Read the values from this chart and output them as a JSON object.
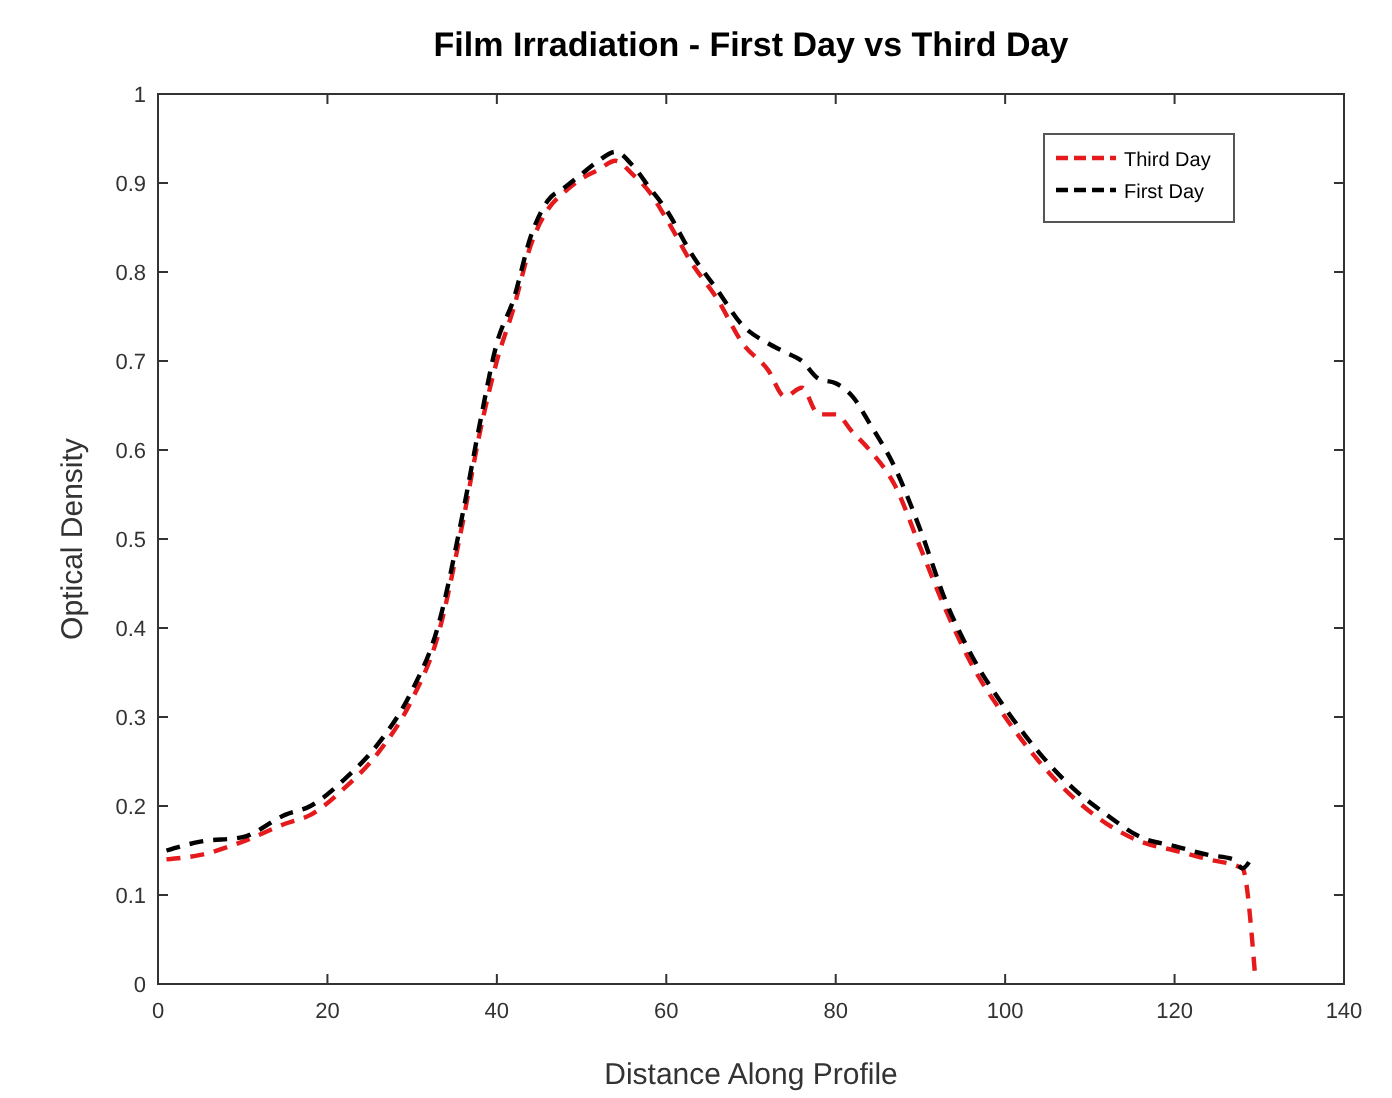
{
  "chart_data": {
    "type": "line",
    "title": "Film Irradiation - First Day vs Third Day",
    "xlabel": "Distance Along Profile",
    "ylabel": "Optical Density",
    "xlim": [
      0,
      140
    ],
    "xticks": [
      0,
      20,
      40,
      60,
      80,
      100,
      120,
      140
    ],
    "ylim": [
      0,
      1
    ],
    "yticks": [
      0,
      0.1,
      0.2,
      0.3,
      0.4,
      0.5,
      0.6,
      0.7,
      0.8,
      0.9,
      1
    ],
    "grid": false,
    "legend": "top right",
    "line_style": "dashed",
    "marker": "none",
    "series": [
      {
        "name": "Third Day",
        "color": "#e41a1c",
        "x": [
          1,
          5,
          10,
          15,
          18,
          22,
          26,
          30,
          33,
          36,
          38,
          40,
          42,
          44,
          46,
          48,
          50,
          52,
          54,
          56,
          58,
          60,
          63,
          66,
          69,
          72,
          74,
          76,
          78,
          80,
          82,
          84,
          87,
          90,
          93,
          96,
          100,
          104,
          108,
          112,
          116,
          120,
          124,
          128,
          129.5
        ],
        "values": [
          0.14,
          0.145,
          0.16,
          0.18,
          0.19,
          0.22,
          0.26,
          0.32,
          0.39,
          0.52,
          0.62,
          0.7,
          0.76,
          0.83,
          0.87,
          0.89,
          0.905,
          0.915,
          0.925,
          0.91,
          0.89,
          0.86,
          0.81,
          0.77,
          0.72,
          0.69,
          0.66,
          0.67,
          0.64,
          0.64,
          0.62,
          0.6,
          0.56,
          0.49,
          0.42,
          0.36,
          0.3,
          0.25,
          0.21,
          0.18,
          0.16,
          0.15,
          0.14,
          0.13,
          0.01
        ]
      },
      {
        "name": "First Day",
        "color": "#000000",
        "x": [
          1,
          5,
          10,
          15,
          18,
          22,
          26,
          30,
          33,
          36,
          38,
          40,
          42,
          44,
          46,
          48,
          50,
          52,
          54,
          56,
          58,
          60,
          63,
          66,
          69,
          72,
          74,
          76,
          78,
          80,
          82,
          84,
          87,
          90,
          93,
          96,
          100,
          104,
          108,
          112,
          116,
          120,
          124,
          127,
          128,
          129
        ],
        "values": [
          0.15,
          0.16,
          0.165,
          0.19,
          0.2,
          0.23,
          0.27,
          0.33,
          0.4,
          0.53,
          0.63,
          0.72,
          0.77,
          0.84,
          0.88,
          0.895,
          0.91,
          0.925,
          0.935,
          0.92,
          0.895,
          0.87,
          0.82,
          0.78,
          0.74,
          0.72,
          0.71,
          0.7,
          0.68,
          0.675,
          0.66,
          0.63,
          0.58,
          0.51,
          0.43,
          0.37,
          0.31,
          0.26,
          0.22,
          0.19,
          0.165,
          0.155,
          0.145,
          0.14,
          0.13,
          0.14
        ]
      }
    ]
  }
}
